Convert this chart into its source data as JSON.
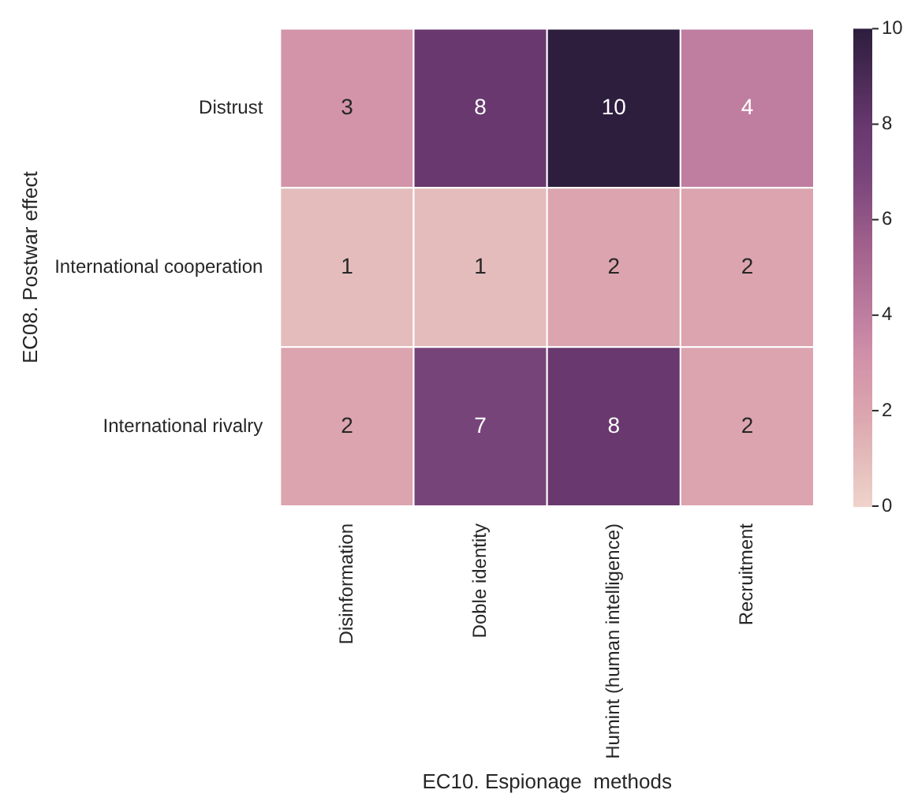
{
  "chart_data": {
    "type": "heatmap",
    "xlabel": "EC10. Espionage  methods",
    "ylabel": "EC08. Postwar effect",
    "categories": [
      "Disinformation",
      "Doble identity",
      "Humint (human intelligence)",
      "Recruitment"
    ],
    "y_categories": [
      "Distrust",
      "International cooperation",
      "International rivalry"
    ],
    "cells": [
      [
        3,
        8,
        10,
        4
      ],
      [
        1,
        1,
        2,
        2
      ],
      [
        2,
        7,
        8,
        2
      ]
    ],
    "clim": [
      0,
      10
    ],
    "cticks": [
      0,
      2,
      4,
      6,
      8,
      10
    ],
    "data_labels": true
  }
}
